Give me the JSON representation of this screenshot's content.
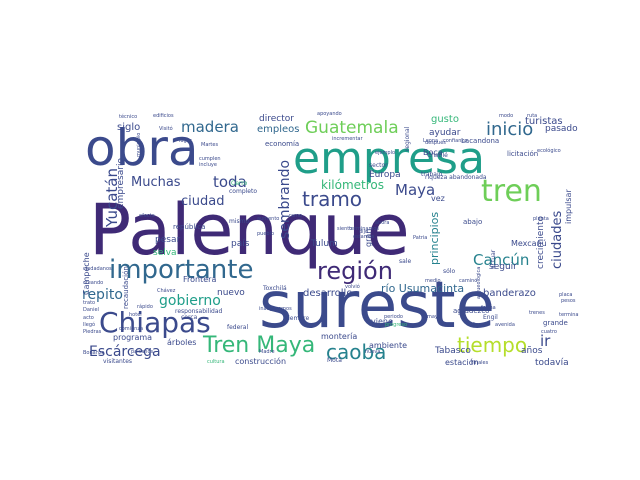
{
  "palette": {
    "dark_purple": "#3f2a76",
    "indigo": "#3b4a8c",
    "blue": "#31688e",
    "teal": "#26828e",
    "green_teal": "#1f9e89",
    "green": "#35b779",
    "light_green": "#6ece58",
    "lime": "#b5de2b"
  },
  "words": [
    {
      "text": "Palenque"
    },
    {
      "text": "sureste"
    },
    {
      "text": "obra"
    },
    {
      "text": "empresa"
    },
    {
      "text": "importante"
    },
    {
      "text": "región"
    },
    {
      "text": "Chiapas"
    },
    {
      "text": "tren"
    },
    {
      "text": "Tren Maya"
    },
    {
      "text": "caoba"
    },
    {
      "text": "tiempo"
    },
    {
      "text": "Guatemala"
    },
    {
      "text": "inicio"
    },
    {
      "text": "madera"
    },
    {
      "text": "Yucatán"
    },
    {
      "text": "Cancún"
    },
    {
      "text": "Escárcega"
    },
    {
      "text": "gobierno"
    },
    {
      "text": "tramo"
    },
    {
      "text": "repito"
    },
    {
      "text": "Maya"
    },
    {
      "text": "Muchas"
    },
    {
      "text": "toda"
    },
    {
      "text": "ciudad"
    },
    {
      "text": "kilómetros"
    },
    {
      "text": "ciudades"
    },
    {
      "text": "ir"
    },
    {
      "text": "río Usumacinta"
    },
    {
      "text": "sembrando"
    },
    {
      "text": "desarrollo"
    },
    {
      "text": "empleos"
    },
    {
      "text": "siglo"
    },
    {
      "text": "turistas"
    },
    {
      "text": "pasado"
    },
    {
      "text": "gusto"
    },
    {
      "text": "ayudar"
    },
    {
      "text": "Europa"
    },
    {
      "text": "empresario"
    },
    {
      "text": "director"
    },
    {
      "text": "principios"
    },
    {
      "text": "crecimiento"
    },
    {
      "text": "Tabasco"
    },
    {
      "text": "banderazo"
    },
    {
      "text": "años"
    },
    {
      "text": "todavía"
    },
    {
      "text": "Tulum"
    },
    {
      "text": "seguir"
    },
    {
      "text": "selva"
    },
    {
      "text": "pesar"
    },
    {
      "text": "nuevo"
    },
    {
      "text": "país"
    },
    {
      "text": "Campeche"
    },
    {
      "text": "estación"
    },
    {
      "text": "construcción"
    },
    {
      "text": "ambiente"
    },
    {
      "text": "programa"
    },
    {
      "text": "árboles"
    },
    {
      "text": "montería"
    },
    {
      "text": "viene"
    },
    {
      "text": "vez"
    },
    {
      "text": "Boca"
    },
    {
      "text": "Mexcanú"
    },
    {
      "text": "impulsar"
    },
    {
      "text": "Lacandona"
    },
    {
      "text": "licitación"
    },
    {
      "text": "economía"
    },
    {
      "text": "Frontera"
    },
    {
      "text": "mismo"
    },
    {
      "text": "república"
    },
    {
      "text": "Cerro"
    },
    {
      "text": "completo"
    },
    {
      "text": "recaudación"
    },
    {
      "text": "visitantes"
    },
    {
      "text": "cultura"
    },
    {
      "text": "Mota"
    },
    {
      "text": "grande"
    },
    {
      "text": "agradezco"
    },
    {
      "text": "Chablé"
    },
    {
      "text": "trabajo"
    },
    {
      "text": "sector"
    },
    {
      "text": "abajo"
    },
    {
      "text": "riqueza abandonada"
    },
    {
      "text": "edificios"
    },
    {
      "text": "Visitó"
    },
    {
      "text": "apoyando"
    },
    {
      "text": "modo"
    },
    {
      "text": "ruta"
    },
    {
      "text": "incrementar"
    },
    {
      "text": "Leona"
    },
    {
      "text": "confianza"
    },
    {
      "text": "Martes"
    },
    {
      "text": "cumplen"
    },
    {
      "text": "incluye"
    },
    {
      "text": "creando"
    },
    {
      "text": "Daniel"
    },
    {
      "text": "federal"
    },
    {
      "text": "llegó"
    },
    {
      "text": "pesos"
    },
    {
      "text": "placa"
    },
    {
      "text": "cuatro"
    },
    {
      "text": "Engil"
    },
    {
      "text": "avenida"
    },
    {
      "text": "mayo"
    },
    {
      "text": "forma"
    },
    {
      "text": "dinos"
    },
    {
      "text": "progreso"
    },
    {
      "text": "sale"
    },
    {
      "text": "periodo"
    },
    {
      "text": "terminar"
    },
    {
      "text": "trenes"
    },
    {
      "text": "sólo"
    },
    {
      "text": "rápido"
    },
    {
      "text": "hotel"
    },
    {
      "text": "acto"
    },
    {
      "text": "trato"
    },
    {
      "text": "volvió"
    },
    {
      "text": "inauguremos"
    },
    {
      "text": "siempre"
    },
    {
      "text": "gran"
    },
    {
      "text": "dijo"
    },
    {
      "text": "actuar"
    },
    {
      "text": "medio"
    },
    {
      "text": "Patria"
    },
    {
      "text": "Toxchilá"
    },
    {
      "text": "responsabilidad"
    },
    {
      "text": "Chávez"
    },
    {
      "text": "Madre"
    },
    {
      "text": "Piedras"
    },
    {
      "text": "paisanos"
    },
    {
      "text": "Bonanza"
    },
    {
      "text": "Finales"
    },
    {
      "text": "nueva"
    },
    {
      "text": "cerca"
    },
    {
      "text": "siento"
    },
    {
      "text": "regional"
    },
    {
      "text": "arqueológica"
    },
    {
      "text": "después"
    },
    {
      "text": "terminamos"
    },
    {
      "text": "efecto"
    },
    {
      "text": "pueblo"
    },
    {
      "text": "aumento"
    },
    {
      "text": "ramo"
    },
    {
      "text": "lugar"
    },
    {
      "text": "ciudadanos"
    },
    {
      "text": "estamos"
    },
    {
      "text": "comienza"
    },
    {
      "text": "municipio"
    },
    {
      "text": "camino"
    },
    {
      "text": "técnico"
    },
    {
      "text": "ahora"
    },
    {
      "text": "ejemplo"
    },
    {
      "text": "planta"
    },
    {
      "text": "ecológico"
    },
    {
      "text": "anuncio"
    }
  ]
}
